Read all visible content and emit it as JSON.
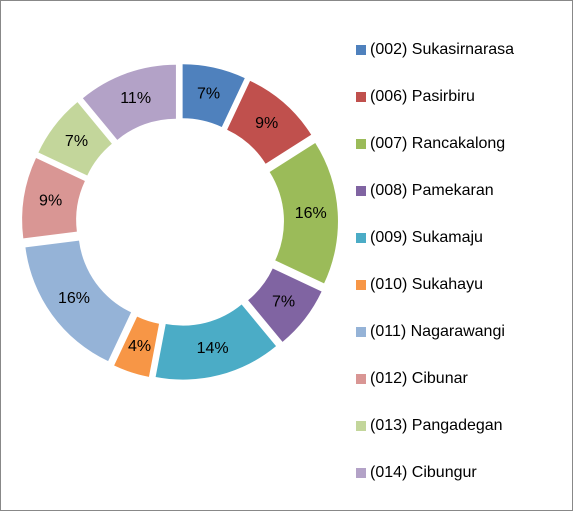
{
  "chart_data": {
    "type": "pie",
    "categories": [
      "(002) Sukasirnarasa",
      "(006) Pasirbiru",
      "(007) Rancakalong",
      "(008) Pamekaran",
      "(009) Sukamaju",
      "(010) Sukahayu",
      "(011) Nagarawangi",
      "(012) Cibunar",
      "(013) Pangadegan",
      "(014) Cibungur"
    ],
    "values": [
      7,
      9,
      16,
      7,
      14,
      4,
      16,
      9,
      7,
      11
    ],
    "value_labels": [
      "7%",
      "9%",
      "16%",
      "7%",
      "14%",
      "4%",
      "16%",
      "9%",
      "7%",
      "11%"
    ],
    "colors": [
      "#4f81bd",
      "#c0504d",
      "#9bbb59",
      "#8064a2",
      "#4bacc6",
      "#f79646",
      "#95b3d7",
      "#d99694",
      "#c3d69b",
      "#b3a2c7"
    ],
    "legend": "right"
  }
}
